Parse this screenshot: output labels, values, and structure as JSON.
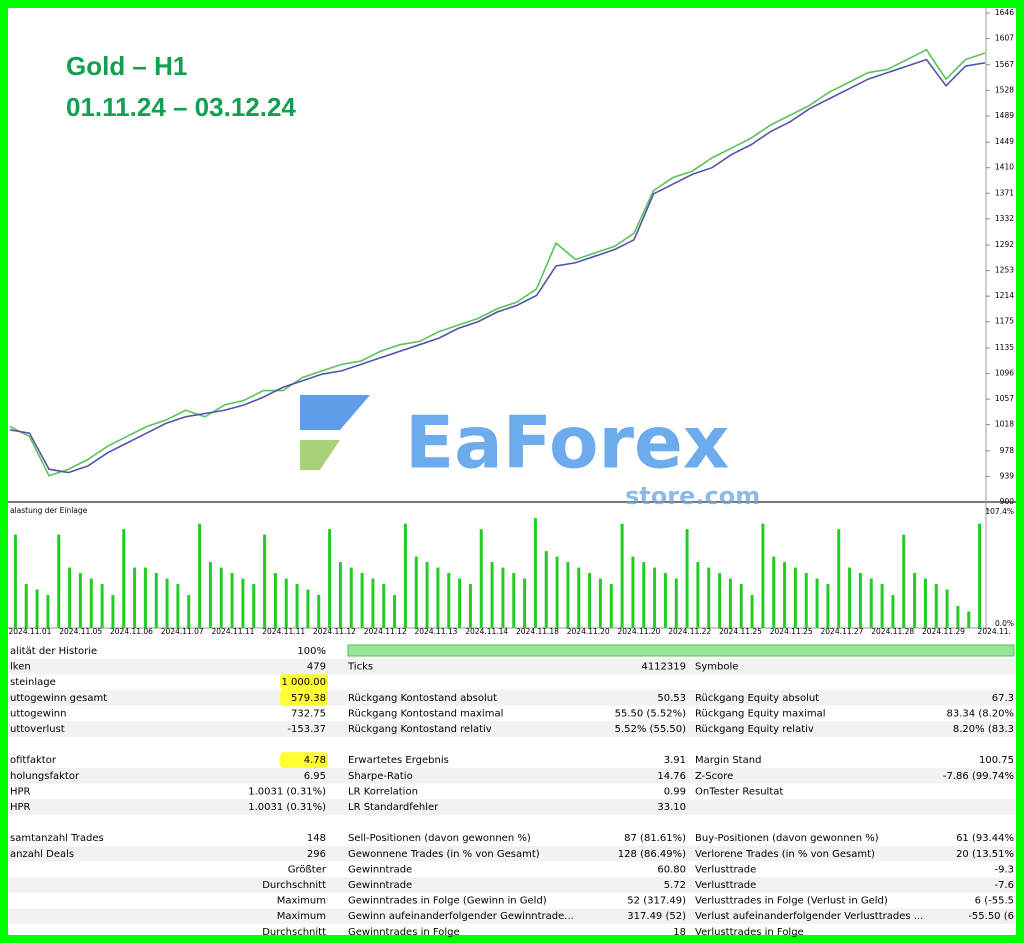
{
  "overlay": {
    "title": "Gold – H1",
    "period": "01.11.24 – 03.12.24"
  },
  "watermark": {
    "brand": "EaForex",
    "domain": "store.com"
  },
  "chart_data": [
    {
      "type": "line",
      "ylim": [
        900,
        1646
      ],
      "yticks": [
        900,
        939,
        978,
        1018,
        1057,
        1096,
        1135,
        1175,
        1214,
        1253,
        1292,
        1332,
        1371,
        1410,
        1449,
        1489,
        1528,
        1567,
        1607,
        1646
      ],
      "series": [
        {
          "color": "#1a1a8c",
          "values": [
            1010,
            1005,
            950,
            945,
            955,
            975,
            990,
            1005,
            1020,
            1030,
            1035,
            1040,
            1048,
            1060,
            1075,
            1085,
            1095,
            1100,
            1110,
            1120,
            1130,
            1140,
            1150,
            1165,
            1175,
            1190,
            1200,
            1215,
            1260,
            1265,
            1275,
            1285,
            1300,
            1370,
            1385,
            1400,
            1410,
            1430,
            1445,
            1465,
            1480,
            1500,
            1515,
            1530,
            1545,
            1555,
            1565,
            1575,
            1535,
            1565,
            1570
          ]
        },
        {
          "color": "#22b022",
          "values": [
            1015,
            1000,
            940,
            950,
            965,
            985,
            1000,
            1015,
            1025,
            1040,
            1030,
            1048,
            1055,
            1070,
            1070,
            1090,
            1100,
            1110,
            1115,
            1130,
            1140,
            1145,
            1160,
            1170,
            1180,
            1195,
            1205,
            1225,
            1295,
            1270,
            1280,
            1290,
            1310,
            1375,
            1395,
            1405,
            1425,
            1440,
            1455,
            1475,
            1490,
            1505,
            1525,
            1540,
            1555,
            1560,
            1575,
            1590,
            1545,
            1575,
            1585
          ]
        }
      ]
    },
    {
      "type": "bar",
      "title": "alastung der Einlage",
      "color": "#22cc22",
      "ylim": [
        0,
        107.4
      ],
      "yticks": [
        {
          "value": 0,
          "label": "0.0%"
        },
        {
          "value": 107.4,
          "label": "107.4%"
        }
      ],
      "x_axis_labels": [
        "2024.11.01",
        "2024.11.05",
        "2024.11.06",
        "2024.11.07",
        "2024.11.11",
        "2024.11.11",
        "2024.11.12",
        "2024.11.12",
        "2024.11.13",
        "2024.11.14",
        "2024.11.18",
        "2024.11.20",
        "2024.11.20",
        "2024.11.22",
        "2024.11.25",
        "2024.11.25",
        "2024.11.27",
        "2024.11.28",
        "2024.11.29",
        "2024.11."
      ],
      "values": [
        85,
        40,
        35,
        30,
        85,
        55,
        50,
        45,
        40,
        30,
        90,
        55,
        55,
        50,
        45,
        40,
        30,
        95,
        60,
        55,
        50,
        45,
        40,
        85,
        50,
        45,
        40,
        35,
        30,
        90,
        60,
        55,
        50,
        45,
        40,
        30,
        95,
        65,
        60,
        55,
        50,
        45,
        40,
        90,
        60,
        55,
        50,
        45,
        100,
        70,
        65,
        60,
        55,
        50,
        45,
        40,
        95,
        65,
        60,
        55,
        50,
        45,
        90,
        60,
        55,
        50,
        45,
        40,
        30,
        95,
        65,
        60,
        55,
        50,
        45,
        40,
        90,
        55,
        50,
        45,
        40,
        30,
        85,
        50,
        45,
        40,
        35,
        20,
        15,
        95
      ]
    }
  ],
  "report": {
    "groups": [
      [
        [
          "alität der Historie",
          "100%",
          null,
          null,
          null,
          null
        ],
        [
          "lken",
          "479",
          "Ticks",
          "4112319",
          "Symbole",
          null
        ],
        [
          "steinlage",
          "1 000.00",
          null,
          null,
          null,
          null
        ],
        [
          "uttogewinn gesamt",
          "579.38",
          "Rückgang Kontostand absolut",
          "50.53",
          "Rückgang Equity absolut",
          "67.3"
        ],
        [
          "uttogewinn",
          "732.75",
          "Rückgang Kontostand maximal",
          "55.50 (5.52%)",
          "Rückgang Equity maximal",
          "83.34 (8.20%"
        ],
        [
          "uttoverlust",
          "-153.37",
          "Rückgang Kontostand relativ",
          "5.52% (55.50)",
          "Rückgang Equity relativ",
          "8.20% (83.3"
        ]
      ],
      [
        [
          "ofitfaktor",
          "4.78",
          "Erwartetes Ergebnis",
          "3.91",
          "Margin Stand",
          "100.75"
        ],
        [
          "holungsfaktor",
          "6.95",
          "Sharpe-Ratio",
          "14.76",
          "Z-Score",
          "-7.86 (99.74%"
        ],
        [
          "HPR",
          "1.0031 (0.31%)",
          "LR Korrelation",
          "0.99",
          "OnTester Resultat",
          null
        ],
        [
          "HPR",
          "1.0031 (0.31%)",
          "LR Standardfehler",
          "33.10",
          null,
          null
        ]
      ],
      [
        [
          "samtanzahl Trades",
          "148",
          "Sell-Positionen (davon gewonnen %)",
          "87 (81.61%)",
          "Buy-Positionen (davon gewonnen %)",
          "61 (93.44%"
        ],
        [
          "anzahl Deals",
          "296",
          "Gewonnene Trades (in % von Gesamt)",
          "128 (86.49%)",
          "Verlorene Trades (in % von Gesamt)",
          "20 (13.51%"
        ],
        [
          null,
          "Größter",
          "Gewinntrade",
          "60.80",
          "Verlusttrade",
          "-9.3"
        ],
        [
          null,
          "Durchschnitt",
          "Gewinntrade",
          "5.72",
          "Verlusttrade",
          "-7.6"
        ],
        [
          null,
          "Maximum",
          "Gewinntrades in Folge (Gewinn in Geld)",
          "52 (317.49)",
          "Verlusttrades in Folge (Verlust in Geld)",
          "6 (-55.5"
        ],
        [
          null,
          "Maximum",
          "Gewinn aufeinanderfolgender Gewinntrade...",
          "317.49 (52)",
          "Verlust aufeinanderfolgender Verlusttrades ...",
          "-55.50 (6"
        ],
        [
          null,
          "Durchschnitt",
          "Gewinntrades in Folge",
          "18",
          "Verlusttrades in Folge",
          null
        ]
      ]
    ]
  }
}
